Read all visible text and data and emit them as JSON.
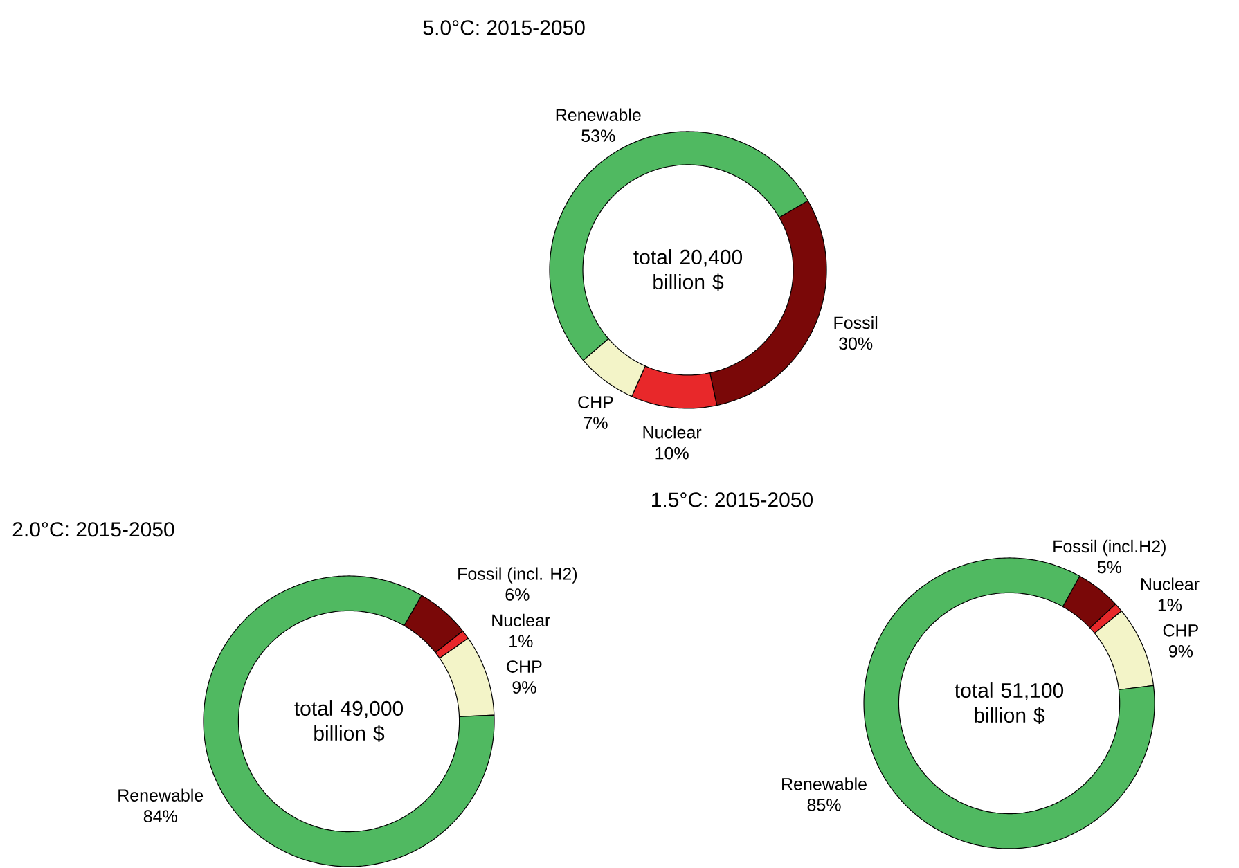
{
  "chart_data": [
    {
      "type": "donut",
      "title": "5.0°C: 2015-2050",
      "categories": [
        "Fossil",
        "Nuclear",
        "CHP",
        "Renewable"
      ],
      "values": [
        30,
        10,
        7,
        53
      ],
      "colors": [
        "#7a0808",
        "#e8282a",
        "#f3f4c8",
        "#50b961"
      ],
      "value_labels": [
        "30%",
        "10%",
        "7%",
        "53%"
      ],
      "annotations": [
        "total 20,400 billion $"
      ]
    },
    {
      "type": "donut",
      "title": "2.0°C: 2015-2050",
      "categories": [
        "Fossil (incl. H2)",
        "Nuclear",
        "CHP",
        "Renewable"
      ],
      "values": [
        6,
        1,
        9,
        84
      ],
      "colors": [
        "#7a0808",
        "#e8282a",
        "#f3f4c8",
        "#50b961"
      ],
      "value_labels": [
        "6%",
        "1%",
        "9%",
        "84%"
      ],
      "annotations": [
        "total 49,000 billion $"
      ]
    },
    {
      "type": "donut",
      "title": "1.5°C: 2015-2050",
      "categories": [
        "Fossil (incl.H2)",
        "Nuclear",
        "CHP",
        "Renewable"
      ],
      "values": [
        5,
        1,
        9,
        85
      ],
      "colors": [
        "#7a0808",
        "#e8282a",
        "#f3f4c8",
        "#50b961"
      ],
      "value_labels": [
        "5%",
        "1%",
        "9%",
        "85%"
      ],
      "annotations": [
        "total 51,100 billion $"
      ]
    }
  ]
}
